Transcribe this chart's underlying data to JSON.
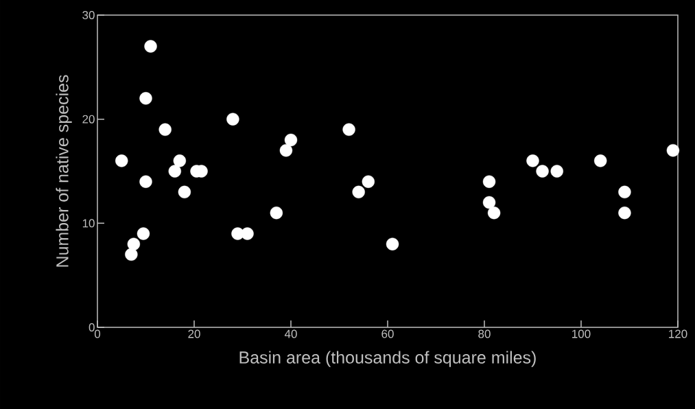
{
  "chart_data": {
    "type": "scatter",
    "xlabel": "Basin area (thousands of square miles)",
    "ylabel": "Number of native species",
    "x": [
      5,
      7,
      7.5,
      9.5,
      10,
      10,
      11,
      14,
      16,
      17,
      18,
      20.5,
      21.5,
      28,
      29,
      31,
      37,
      39,
      40,
      52,
      54,
      56,
      61,
      81,
      81,
      82,
      90,
      92,
      95,
      104,
      109,
      109,
      119
    ],
    "values": [
      16,
      7,
      8,
      9,
      14,
      22,
      27,
      19,
      15,
      16,
      13,
      15,
      15,
      20,
      9,
      9,
      11,
      17,
      18,
      19,
      13,
      14,
      8,
      14,
      12,
      11,
      16,
      15,
      15,
      16,
      13,
      11,
      17
    ],
    "color": "#ffffff",
    "marker": "circle",
    "grid": false,
    "xlim": [
      0,
      120
    ],
    "xticks": [
      0,
      20,
      40,
      60,
      80,
      100,
      120
    ],
    "ylim": [
      0,
      30
    ],
    "yticks": [
      0,
      10,
      20,
      30
    ]
  }
}
